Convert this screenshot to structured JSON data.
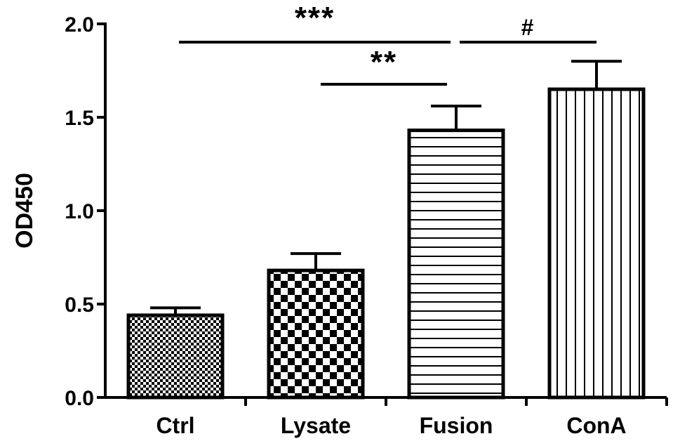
{
  "chart_data": {
    "type": "bar",
    "title": "",
    "xlabel": "",
    "ylabel": "OD450",
    "ylim": [
      0,
      2.0
    ],
    "yticks": [
      "0.0",
      "0.5",
      "1.0",
      "1.5",
      "2.0"
    ],
    "categories": [
      "Ctrl",
      "Lysate",
      "Fusion",
      "ConA"
    ],
    "values": [
      0.44,
      0.68,
      1.43,
      1.65
    ],
    "errors": [
      0.04,
      0.09,
      0.13,
      0.15
    ],
    "fill_patterns": [
      "fine-checker",
      "coarse-checker",
      "horizontal-lines",
      "vertical-lines"
    ],
    "significance": [
      {
        "from": "Ctrl",
        "to": "Fusion",
        "label": "***"
      },
      {
        "from": "Lysate",
        "to": "Fusion",
        "label": "**"
      },
      {
        "from": "Fusion",
        "to": "ConA",
        "label": "#"
      }
    ],
    "grid": false,
    "legend": "none",
    "colors": {
      "stroke": "#000000",
      "fill": "#ffffff"
    }
  }
}
